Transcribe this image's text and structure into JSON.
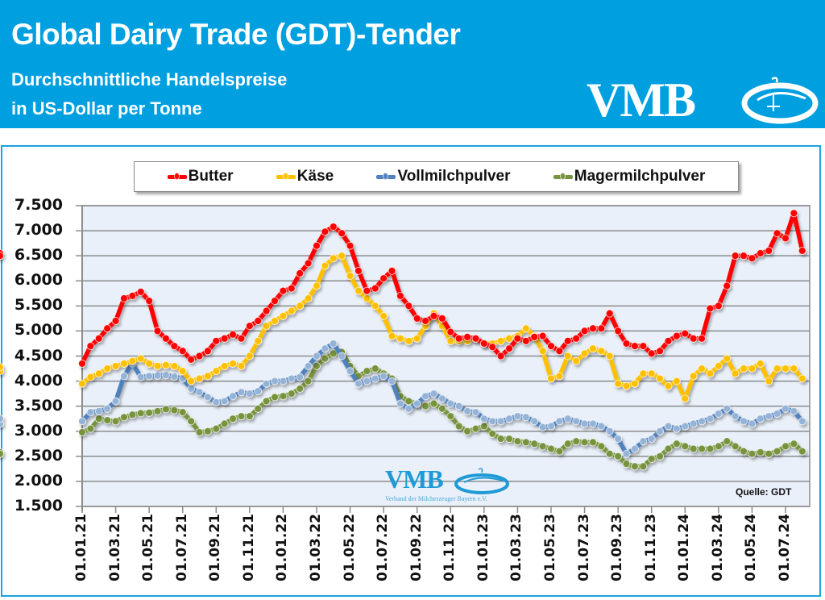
{
  "header": {
    "title": "Global Dairy Trade (GDT)-Tender",
    "subtitle_line1": "Durchschnittliche Handelspreise",
    "subtitle_line2": "in US-Dollar per Tonne",
    "logo_text": "VMB"
  },
  "watermark": {
    "logo_text": "VMB",
    "tagline": "Verband der Milcherzeuger Bayern e.V."
  },
  "source_label": "Quelle:  GDT",
  "colors": {
    "header_bg": "#009fe0",
    "panel_border": "#1aa3e0",
    "plot_bg": "#e9f0f9",
    "butter": "#ff0000",
    "kaese": "#ffc000",
    "vollmilchpulver": "#4f81bd",
    "vollmilchpulver_marker": "#95b3d7",
    "magermilchpulver": "#77933c"
  },
  "chart_data": {
    "type": "line",
    "title": "Global Dairy Trade (GDT)-Tender",
    "subtitle": "Durchschnittliche Handelspreise in US-Dollar per Tonne",
    "xlabel": "",
    "ylabel": "",
    "ylim": [
      1500,
      7500
    ],
    "yticks": [
      7500,
      7000,
      6500,
      6000,
      5500,
      5000,
      4500,
      4000,
      3500,
      3000,
      2500,
      2000,
      1500
    ],
    "ytick_labels": [
      "7.500",
      "7.000",
      "6.500",
      "6.000",
      "5.500",
      "5.000",
      "4.500",
      "4.000",
      "3.500",
      "3.000",
      "2.500",
      "2.000",
      "1.500"
    ],
    "xtick_labels": [
      "01.01.21",
      "01.03.21",
      "01.05.21",
      "01.07.21",
      "01.09.21",
      "01.11.21",
      "01.01.22",
      "01.03.22",
      "01.05.22",
      "01.07.22",
      "01.09.22",
      "01.11.22",
      "01.01.23",
      "01.03.23",
      "01.05.23",
      "01.07.23",
      "01.09.23",
      "01.11.23",
      "01.01.24",
      "01.03.24",
      "01.05.24",
      "01.07.24"
    ],
    "x_months_note": "x = months since 01.01.21",
    "grid": true,
    "legend_position": "top",
    "x": [
      0,
      0.5,
      1,
      1.5,
      2,
      2.5,
      3,
      3.5,
      4,
      4.5,
      5,
      5.5,
      6,
      6.5,
      7,
      7.5,
      8,
      8.5,
      9,
      9.5,
      10,
      10.5,
      11,
      11.5,
      12,
      12.5,
      13,
      13.5,
      14,
      14.5,
      15,
      15.5,
      16,
      16.5,
      17,
      17.5,
      18,
      18.5,
      19,
      19.5,
      20,
      20.5,
      21,
      21.5,
      22,
      22.5,
      23,
      23.5,
      24,
      24.5,
      25,
      25.5,
      26,
      26.5,
      27,
      27.5,
      28,
      28.5,
      29,
      29.5,
      30,
      30.5,
      31,
      31.5,
      32,
      32.5,
      33,
      33.5,
      34,
      34.5,
      35,
      35.5,
      36,
      36.5,
      37,
      37.5,
      38,
      38.5,
      39,
      39.5,
      40,
      40.5,
      41,
      41.5,
      42,
      42.5,
      43
    ],
    "series": [
      {
        "name": "Butter",
        "color": "#ff0000",
        "values": [
          4350,
          4700,
          4850,
          5050,
          5200,
          5650,
          5700,
          5780,
          5600,
          5000,
          4850,
          4700,
          4600,
          4430,
          4500,
          4600,
          4800,
          4850,
          4930,
          4850,
          5100,
          5200,
          5400,
          5600,
          5800,
          5850,
          6150,
          6350,
          6700,
          6980,
          7080,
          6950,
          6700,
          6200,
          5800,
          5850,
          6050,
          6200,
          5700,
          5500,
          5250,
          5200,
          5300,
          5250,
          4980,
          4850,
          4880,
          4850,
          4750,
          4680,
          4500,
          4650,
          4850,
          4800,
          4880,
          4900,
          4700,
          4600,
          4800,
          4850,
          5000,
          5050,
          5050,
          5350,
          5000,
          4750,
          4700,
          4700,
          4550,
          4600,
          4800,
          4900,
          4950,
          4850,
          4850,
          5450,
          5500,
          5900,
          6500,
          6500,
          6450,
          6550,
          6600,
          6950,
          6850,
          7350,
          6600,
          6550,
          6500
        ]
      },
      {
        "name": "Käse",
        "color": "#ffc000",
        "values": [
          3950,
          4080,
          4150,
          4250,
          4300,
          4350,
          4400,
          4450,
          4350,
          4300,
          4320,
          4300,
          4200,
          4000,
          4050,
          4100,
          4200,
          4300,
          4350,
          4300,
          4500,
          4800,
          5100,
          5200,
          5300,
          5400,
          5500,
          5650,
          5900,
          6300,
          6450,
          6500,
          6100,
          5800,
          5650,
          5500,
          5300,
          4900,
          4850,
          4800,
          4850,
          5100,
          5350,
          5100,
          4800,
          4800,
          4800,
          4850,
          4750,
          4750,
          4800,
          4850,
          4900,
          5050,
          4900,
          4600,
          4050,
          4100,
          4500,
          4400,
          4550,
          4650,
          4600,
          4500,
          3950,
          3900,
          3950,
          4150,
          4150,
          4050,
          3900,
          4000,
          3650,
          4100,
          4250,
          4150,
          4300,
          4450,
          4150,
          4250,
          4250,
          4350,
          4000,
          4250,
          4250,
          4250,
          4050,
          4200,
          4280
        ]
      },
      {
        "name": "Vollmilchpulver",
        "color": "#4f81bd",
        "values": [
          3200,
          3380,
          3400,
          3450,
          3600,
          4100,
          4350,
          4080,
          4100,
          4110,
          4120,
          4090,
          4050,
          3850,
          3780,
          3680,
          3580,
          3600,
          3700,
          3780,
          3750,
          3800,
          3950,
          4000,
          4000,
          4050,
          4080,
          4300,
          4500,
          4650,
          4750,
          4500,
          4200,
          3950,
          4000,
          4050,
          4100,
          4000,
          3550,
          3450,
          3550,
          3700,
          3750,
          3650,
          3550,
          3500,
          3400,
          3380,
          3250,
          3200,
          3200,
          3250,
          3300,
          3280,
          3200,
          3080,
          3100,
          3200,
          3250,
          3200,
          3150,
          3150,
          3100,
          3000,
          2850,
          2550,
          2650,
          2800,
          2850,
          3000,
          3100,
          3050,
          3100,
          3150,
          3200,
          3250,
          3350,
          3450,
          3300,
          3200,
          3150,
          3250,
          3300,
          3350,
          3450,
          3400,
          3200,
          3150,
          3250
        ]
      },
      {
        "name": "Magermilchpulver",
        "color": "#77933c",
        "values": [
          2980,
          3050,
          3250,
          3220,
          3200,
          3280,
          3330,
          3360,
          3370,
          3400,
          3440,
          3420,
          3380,
          3200,
          2980,
          3000,
          3050,
          3150,
          3250,
          3300,
          3300,
          3450,
          3600,
          3680,
          3700,
          3750,
          3850,
          4000,
          4300,
          4450,
          4550,
          4580,
          4300,
          4100,
          4200,
          4250,
          4150,
          4050,
          3700,
          3600,
          3550,
          3500,
          3550,
          3450,
          3300,
          3100,
          3000,
          3050,
          3100,
          2950,
          2850,
          2850,
          2800,
          2780,
          2750,
          2700,
          2650,
          2600,
          2750,
          2800,
          2780,
          2780,
          2700,
          2550,
          2500,
          2350,
          2300,
          2300,
          2450,
          2500,
          2650,
          2750,
          2700,
          2650,
          2650,
          2650,
          2700,
          2800,
          2700,
          2600,
          2550,
          2580,
          2550,
          2600,
          2700,
          2750,
          2600,
          2580,
          2550
        ]
      }
    ]
  }
}
